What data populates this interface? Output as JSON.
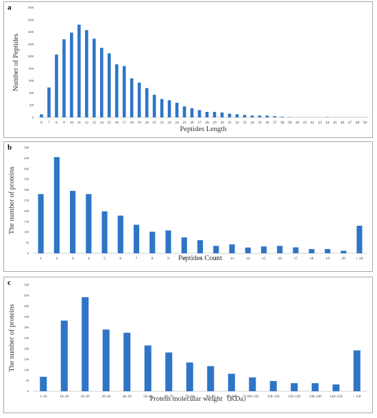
{
  "colors": {
    "bar": "#2e75c7",
    "axis": "#bfbfbf"
  },
  "chart_data": [
    {
      "panel_label": "a",
      "type": "bar",
      "xlabel": "Peptides Length",
      "ylabel": "Number of Peptides",
      "ylim": [
        0,
        1800
      ],
      "yticks": [
        0,
        200,
        400,
        600,
        800,
        1000,
        1200,
        1400,
        1600,
        1800
      ],
      "grid": false,
      "categories": [
        "6",
        "7",
        "8",
        "9",
        "10",
        "11",
        "12",
        "13",
        "14",
        "15",
        "16",
        "17",
        "18",
        "19",
        "20",
        "21",
        "22",
        "23",
        "24",
        "25",
        "26",
        "27",
        "28",
        "29",
        "30",
        "31",
        "32",
        "33",
        "34",
        "35",
        "36",
        "37",
        "38",
        "39",
        "40",
        "41",
        "42",
        "43",
        "44",
        "45",
        "46",
        "47",
        "48",
        "50"
      ],
      "values": [
        50,
        490,
        1030,
        1280,
        1390,
        1520,
        1430,
        1290,
        1140,
        1050,
        870,
        840,
        640,
        570,
        480,
        370,
        300,
        280,
        240,
        180,
        150,
        120,
        90,
        90,
        80,
        60,
        50,
        40,
        30,
        30,
        30,
        20,
        10,
        5,
        2,
        2,
        2,
        2,
        5,
        2,
        2,
        2,
        2,
        2
      ]
    },
    {
      "panel_label": "b",
      "type": "bar",
      "xlabel": "Peptides Count",
      "ylabel": "The number of proteins",
      "ylim": [
        0,
        500
      ],
      "yticks": [
        0,
        50,
        100,
        150,
        200,
        250,
        300,
        350,
        400,
        450,
        500
      ],
      "grid": false,
      "categories": [
        "1",
        "2",
        "3",
        "4",
        "5",
        "6",
        "7",
        "8",
        "9",
        "10",
        "11",
        "12",
        "13",
        "14",
        "15",
        "16",
        "17",
        "18",
        "19",
        "20",
        "> 20"
      ],
      "values": [
        280,
        455,
        295,
        280,
        198,
        178,
        135,
        102,
        108,
        75,
        62,
        35,
        42,
        27,
        32,
        35,
        28,
        20,
        20,
        12,
        130
      ]
    },
    {
      "panel_label": "c",
      "type": "bar",
      "xlabel": "Protein molecular weight（KDa）",
      "ylabel": "The number of proteins",
      "ylim": [
        0,
        500
      ],
      "yticks": [
        0,
        50,
        100,
        150,
        200,
        250,
        300,
        350,
        400,
        450,
        500
      ],
      "grid": false,
      "categories": [
        "3~10",
        "10~20",
        "20~30",
        "30~40",
        "40~50",
        "50~60",
        "60~70",
        "70~80",
        "80~90",
        "90~100",
        "100~110",
        "110~120",
        "120~130",
        "130~140",
        "140~150",
        "> 150"
      ],
      "values": [
        68,
        332,
        442,
        290,
        275,
        215,
        182,
        135,
        118,
        82,
        65,
        48,
        38,
        38,
        32,
        192
      ]
    }
  ]
}
